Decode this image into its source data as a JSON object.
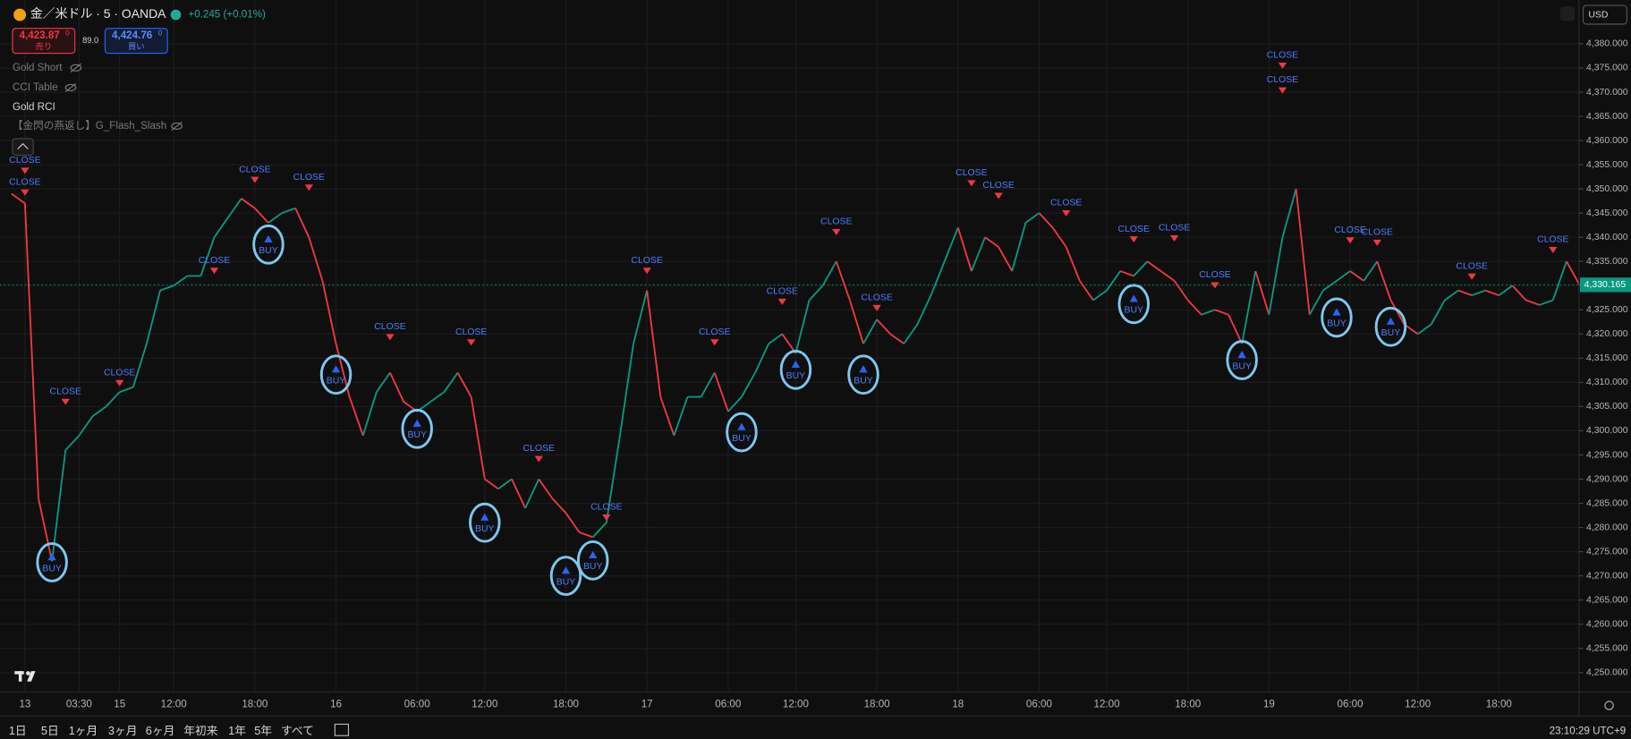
{
  "header": {
    "symbol": "金／米ドル · 5 · OANDA",
    "change": "+0.245 (+0.01%)",
    "sell": {
      "price": "4,423.87",
      "sup": "0",
      "label": "売り"
    },
    "spread": "89.0",
    "buy": {
      "price": "4,424.76",
      "sup": "0",
      "label": "買い"
    },
    "currency": "USD"
  },
  "indicators": [
    "Gold Short",
    "CCI Table",
    "Gold RCI",
    "【金閃の燕返し】G_Flash_Slash"
  ],
  "chart_data": {
    "type": "line",
    "categories": [
      null,
      "13",
      null,
      null,
      null,
      "03:30",
      null,
      null,
      "15",
      null,
      null,
      null,
      "12:00",
      null,
      null,
      null,
      null,
      null,
      "18:00",
      null,
      null,
      null,
      null,
      null,
      "16",
      null,
      null,
      null,
      null,
      null,
      "06:00",
      null,
      null,
      null,
      null,
      "12:00",
      null,
      null,
      null,
      null,
      null,
      "18:00",
      null,
      null,
      null,
      null,
      null,
      "17",
      null,
      null,
      null,
      null,
      null,
      "06:00",
      null,
      null,
      null,
      null,
      "12:00",
      null,
      null,
      null,
      null,
      null,
      "18:00",
      null,
      null,
      null,
      null,
      null,
      "18",
      null,
      null,
      null,
      null,
      null,
      "06:00",
      null,
      null,
      null,
      null,
      "12:00",
      null,
      null,
      null,
      null,
      null,
      "18:00",
      null,
      null,
      null,
      null,
      null,
      "19",
      null,
      null,
      null,
      null,
      null,
      "06:00",
      null,
      null,
      null,
      null,
      "12:00",
      null,
      null,
      null,
      null,
      null,
      "18:00",
      null,
      null,
      null,
      null,
      null,
      null
    ],
    "values": [
      4349,
      4347,
      4286,
      4273,
      4296,
      4299,
      4303,
      4305,
      4308,
      4309,
      4318,
      4329,
      4330,
      4332,
      4332,
      4340,
      4344,
      4348,
      4346,
      4343,
      4345,
      4346,
      4340,
      4331,
      4318,
      4307,
      4299,
      4308,
      4312,
      4306,
      4304,
      4306,
      4308,
      4312,
      4307,
      4290,
      4288,
      4290,
      4284,
      4290,
      4286,
      4283,
      4279,
      4278,
      4281,
      4299,
      4318,
      4329,
      4307,
      4299,
      4307,
      4307,
      4312,
      4304,
      4307,
      4312,
      4318,
      4320,
      4316,
      4327,
      4330,
      4335,
      4327,
      4318,
      4323,
      4320,
      4318,
      4322,
      4328,
      4335,
      4342,
      4333,
      4340,
      4338,
      4333,
      4343,
      4345,
      4342,
      4338,
      4331,
      4327,
      4329,
      4333,
      4332,
      4335,
      4333,
      4331,
      4327,
      4324,
      4325,
      4324,
      4318,
      4333,
      4324,
      4340,
      4350,
      4324,
      4329,
      4331,
      4333,
      4331,
      4335,
      4327,
      4322,
      4320,
      4322,
      4327,
      4329,
      4328,
      4329,
      4328,
      4330,
      4327,
      4326,
      4327,
      4335,
      4330
    ],
    "up_color": "#089981",
    "down_color": "#f23645",
    "ylim": [
      4246,
      4389
    ],
    "yticks": [
      {
        "value": 4250,
        "label": "4,250.000"
      },
      {
        "value": 4255,
        "label": "4,255.000"
      },
      {
        "value": 4260,
        "label": "4,260.000"
      },
      {
        "value": 4265,
        "label": "4,265.000"
      },
      {
        "value": 4270,
        "label": "4,270.000"
      },
      {
        "value": 4275,
        "label": "4,275.000"
      },
      {
        "value": 4280,
        "label": "4,280.000"
      },
      {
        "value": 4285,
        "label": "4,285.000"
      },
      {
        "value": 4290,
        "label": "4,290.000"
      },
      {
        "value": 4295,
        "label": "4,295.000"
      },
      {
        "value": 4300,
        "label": "4,300.000"
      },
      {
        "value": 4305,
        "label": "4,305.000"
      },
      {
        "value": 4310,
        "label": "4,310.000"
      },
      {
        "value": 4315,
        "label": "4,315.000"
      },
      {
        "value": 4320,
        "label": "4,320.000"
      },
      {
        "value": 4325,
        "label": "4,325.000"
      },
      {
        "value": 4330,
        "label": "4,330.000"
      },
      {
        "value": 4335,
        "label": "4,335.000"
      },
      {
        "value": 4340,
        "label": "4,340.000"
      },
      {
        "value": 4345,
        "label": "4,345.000"
      },
      {
        "value": 4350,
        "label": "4,350.000"
      },
      {
        "value": 4355,
        "label": "4,355.000"
      },
      {
        "value": 4360,
        "label": "4,360.000"
      },
      {
        "value": 4365,
        "label": "4,365.000"
      },
      {
        "value": 4370,
        "label": "4,370.000"
      },
      {
        "value": 4375,
        "label": "4,375.000"
      },
      {
        "value": 4380,
        "label": "4,380.000"
      }
    ],
    "grid": true,
    "last_price": {
      "value": 4330.165,
      "label": "4,330.165"
    },
    "buy_signals": [
      {
        "text": "BUY",
        "x": 3,
        "price": 4272.8
      },
      {
        "text": "BUY",
        "x": 19,
        "price": 4338.5
      },
      {
        "text": "BUY",
        "x": 24,
        "price": 4311.6
      },
      {
        "text": "BUY",
        "x": 30,
        "price": 4300.4
      },
      {
        "text": "BUY",
        "x": 35,
        "price": 4281
      },
      {
        "text": "BUY",
        "x": 41,
        "price": 4270
      },
      {
        "text": "BUY",
        "x": 43,
        "price": 4273.2
      },
      {
        "text": "BUY",
        "x": 54,
        "price": 4299.7
      },
      {
        "text": "BUY",
        "x": 58,
        "price": 4312.6
      },
      {
        "text": "BUY",
        "x": 63,
        "price": 4311.6
      },
      {
        "text": "BUY",
        "x": 83,
        "price": 4326.2
      },
      {
        "text": "BUY",
        "x": 91,
        "price": 4314.6
      },
      {
        "text": "BUY",
        "x": 98,
        "price": 4323.4
      },
      {
        "text": "BUY",
        "x": 102,
        "price": 4321.5
      }
    ],
    "close_signals": [
      {
        "text": "CLOSE",
        "x": 1,
        "price": 4355.9
      },
      {
        "text": "CLOSE",
        "x": 1,
        "price": 4351.4
      },
      {
        "text": "CLOSE",
        "x": 4,
        "price": 4308.1
      },
      {
        "text": "CLOSE",
        "x": 8,
        "price": 4312
      },
      {
        "text": "CLOSE",
        "x": 15,
        "price": 4335.2
      },
      {
        "text": "CLOSE",
        "x": 18,
        "price": 4354
      },
      {
        "text": "CLOSE",
        "x": 22,
        "price": 4352.4
      },
      {
        "text": "CLOSE",
        "x": 28,
        "price": 4321.5
      },
      {
        "text": "CLOSE",
        "x": 34,
        "price": 4320.4
      },
      {
        "text": "CLOSE",
        "x": 39,
        "price": 4296.3
      },
      {
        "text": "CLOSE",
        "x": 44,
        "price": 4284.2
      },
      {
        "text": "CLOSE",
        "x": 47,
        "price": 4335.2
      },
      {
        "text": "CLOSE",
        "x": 52,
        "price": 4320.4
      },
      {
        "text": "CLOSE",
        "x": 57,
        "price": 4328.8
      },
      {
        "text": "CLOSE",
        "x": 61,
        "price": 4343.2
      },
      {
        "text": "CLOSE",
        "x": 64,
        "price": 4327.5
      },
      {
        "text": "CLOSE",
        "x": 71,
        "price": 4353.3
      },
      {
        "text": "CLOSE",
        "x": 73,
        "price": 4350.7
      },
      {
        "text": "CLOSE",
        "x": 78,
        "price": 4347.1
      },
      {
        "text": "CLOSE",
        "x": 83,
        "price": 4341.7
      },
      {
        "text": "CLOSE",
        "x": 86,
        "price": 4341.9
      },
      {
        "text": "CLOSE",
        "x": 89,
        "price": 4332.2
      },
      {
        "text": "CLOSE",
        "x": 94,
        "price": 4377.6
      },
      {
        "text": "CLOSE",
        "x": 94,
        "price": 4372.5
      },
      {
        "text": "CLOSE",
        "x": 99,
        "price": 4341.5
      },
      {
        "text": "CLOSE",
        "x": 101,
        "price": 4341
      },
      {
        "text": "CLOSE",
        "x": 108,
        "price": 4334
      },
      {
        "text": "CLOSE",
        "x": 114,
        "price": 4339.5
      }
    ]
  },
  "toolbar": {
    "ranges": [
      "1日",
      "5日",
      "1ヶ月",
      "3ヶ月",
      "6ヶ月",
      "年初来",
      "1年",
      "5年",
      "すべて"
    ],
    "clock": "23:10:29 UTC+9"
  }
}
